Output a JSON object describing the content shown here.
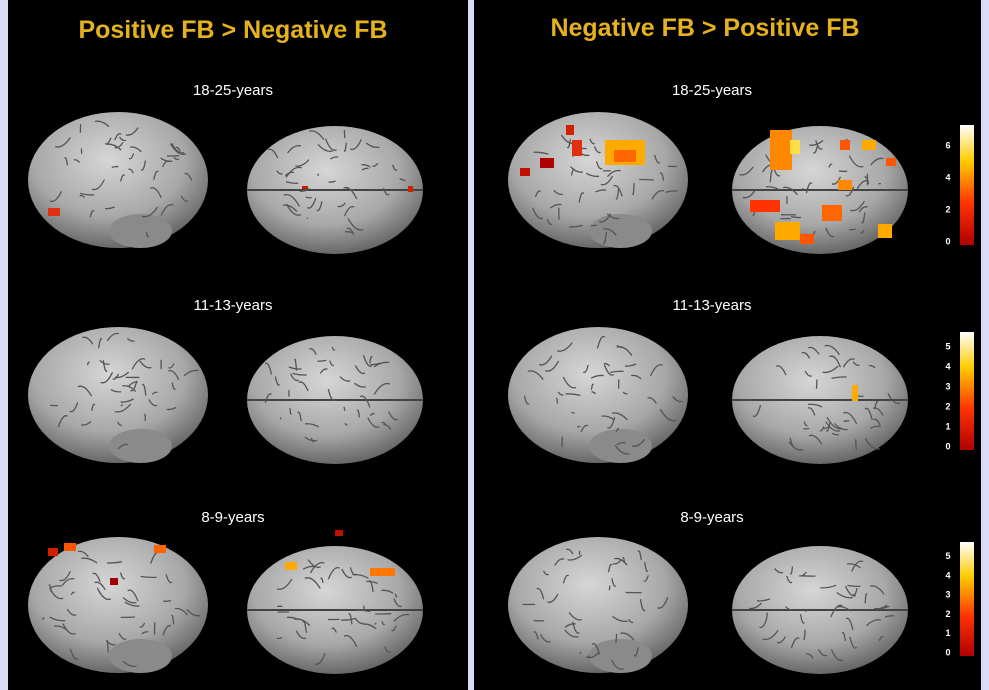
{
  "panels": [
    {
      "title": "Positive FB > Negative FB",
      "rows": [
        {
          "label": "18-25-years"
        },
        {
          "label": "11-13-years"
        },
        {
          "label": "8-9-years"
        }
      ]
    },
    {
      "title": "Negative FB > Positive FB",
      "rows": [
        {
          "label": "18-25-years"
        },
        {
          "label": "11-13-years"
        },
        {
          "label": "8-9-years"
        }
      ]
    }
  ],
  "colorbars": [
    {
      "ticks": [
        0,
        2,
        4,
        6
      ]
    },
    {
      "ticks": [
        0,
        1,
        2,
        3,
        4,
        5
      ]
    },
    {
      "ticks": [
        0,
        1,
        2,
        3,
        4,
        5
      ]
    }
  ]
}
